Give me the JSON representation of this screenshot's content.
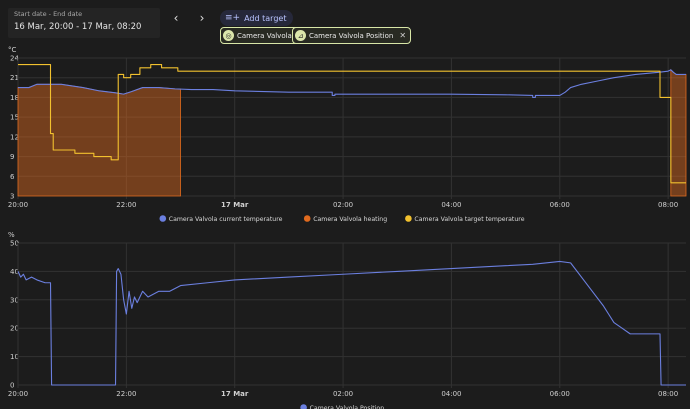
{
  "toolbar": {
    "date_label": "Start date - End date",
    "date_value": "16 Mar, 20:00 - 17 Mar, 08:20",
    "prev_icon": "chevron-left-icon",
    "next_icon": "chevron-right-icon",
    "add_target_label": "Add target",
    "add_target_icon": "playlist-plus-icon"
  },
  "chips": [
    {
      "label": "Camera Valvola",
      "icon": "thermostat-icon"
    },
    {
      "label": "Camera Valvola Position",
      "icon": "valve-icon"
    }
  ],
  "colors": {
    "current_temperature": "#6b7fdf",
    "heating": "#e06a1e",
    "target_temperature": "#f2c12e",
    "position": "#6b7fdf"
  },
  "chart_data": [
    {
      "type": "line",
      "ylabel": "°C",
      "ylim": [
        3,
        24
      ],
      "yticks": [
        "24",
        "21",
        "18",
        "15",
        "12",
        "9",
        "6",
        "3"
      ],
      "x_ticks": [
        {
          "label": "20:00",
          "t": 0
        },
        {
          "label": "22:00",
          "t": 2
        },
        {
          "label": "17 Mar",
          "t": 4,
          "bold": true
        },
        {
          "label": "02:00",
          "t": 6
        },
        {
          "label": "04:00",
          "t": 8
        },
        {
          "label": "06:00",
          "t": 10
        },
        {
          "label": "08:00",
          "t": 12
        }
      ],
      "xlim": [
        0,
        12.33
      ],
      "legend": [
        {
          "name": "Camera Valvola current temperature",
          "color": "#6b7fdf"
        },
        {
          "name": "Camera Valvola heating",
          "color": "#e06a1e"
        },
        {
          "name": "Camera Valvola target temperature",
          "color": "#f2c12e"
        }
      ],
      "series": [
        {
          "name": "Camera Valvola current temperature",
          "x": [
            0,
            0.2,
            0.35,
            0.5,
            0.8,
            1.2,
            1.5,
            1.8,
            1.95,
            2.1,
            2.3,
            2.6,
            2.9,
            3.2,
            3.6,
            4.0,
            5.0,
            5.8,
            5.8,
            5.85,
            5.85,
            7.0,
            8.0,
            9.0,
            9.5,
            9.5,
            9.55,
            9.55,
            10.0,
            10.1,
            10.2,
            10.4,
            10.7,
            11.0,
            11.4,
            11.8,
            12.0,
            12.05,
            12.1,
            12.15,
            12.33
          ],
          "y": [
            19.5,
            19.5,
            20,
            20,
            20,
            19.5,
            19,
            18.7,
            18.5,
            18.9,
            19.5,
            19.5,
            19.3,
            19.2,
            19.2,
            19,
            18.8,
            18.8,
            18.3,
            18.3,
            18.5,
            18.5,
            18.5,
            18.4,
            18.3,
            18,
            18,
            18.3,
            18.3,
            18.8,
            19.5,
            20,
            20.5,
            21,
            21.5,
            21.8,
            22,
            22.2,
            21.8,
            21.5,
            21.5
          ]
        },
        {
          "name": "Camera Valvola target temperature",
          "x": [
            0,
            0.6,
            0.6,
            0.65,
            0.65,
            1.05,
            1.05,
            1.4,
            1.4,
            1.72,
            1.72,
            1.85,
            1.85,
            1.95,
            1.95,
            2.08,
            2.08,
            2.25,
            2.25,
            2.45,
            2.45,
            2.65,
            2.65,
            2.95,
            2.95,
            11.85,
            11.85,
            12.05,
            12.05,
            12.33
          ],
          "y": [
            23,
            23,
            12.5,
            12.5,
            10,
            10,
            9.5,
            9.5,
            9,
            9,
            8.5,
            8.5,
            21.5,
            21.5,
            21,
            21,
            21.5,
            21.5,
            22.5,
            22.5,
            23,
            23,
            22.5,
            22.5,
            22,
            22,
            18,
            18,
            5,
            5
          ]
        }
      ],
      "heating": [
        {
          "start": 0,
          "end": 3.0
        },
        {
          "start": 12.05,
          "end": 12.33
        }
      ]
    },
    {
      "type": "line",
      "ylabel": "%",
      "ylim": [
        0,
        50
      ],
      "yticks": [
        "50",
        "40",
        "30",
        "20",
        "10",
        "0"
      ],
      "x_ticks": [
        {
          "label": "20:00",
          "t": 0
        },
        {
          "label": "22:00",
          "t": 2
        },
        {
          "label": "17 Mar",
          "t": 4,
          "bold": true
        },
        {
          "label": "02:00",
          "t": 6
        },
        {
          "label": "04:00",
          "t": 8
        },
        {
          "label": "06:00",
          "t": 10
        },
        {
          "label": "08:00",
          "t": 12
        }
      ],
      "xlim": [
        0,
        12.33
      ],
      "legend": [
        {
          "name": "Camera Valvola Position",
          "color": "#6b7fdf"
        }
      ],
      "series": [
        {
          "name": "Camera Valvola Position",
          "x": [
            0,
            0.05,
            0.1,
            0.15,
            0.25,
            0.35,
            0.5,
            0.6,
            0.62,
            1.8,
            1.82,
            1.85,
            1.9,
            1.95,
            2.0,
            2.05,
            2.1,
            2.15,
            2.2,
            2.3,
            2.4,
            2.6,
            2.8,
            3.0,
            3.5,
            4.0,
            5.0,
            6.0,
            7.0,
            8.0,
            9.0,
            9.5,
            10.0,
            10.2,
            10.4,
            10.6,
            10.8,
            10.9,
            11.0,
            11.15,
            11.3,
            11.5,
            11.8,
            11.85,
            11.87,
            12.33
          ],
          "y": [
            40,
            38,
            39,
            37,
            38,
            37,
            36,
            36,
            0,
            0,
            40,
            41,
            39,
            30,
            25,
            33,
            27,
            31,
            29,
            33,
            31,
            33,
            33,
            35,
            36,
            37,
            38,
            39,
            40,
            41,
            42,
            42.5,
            43.5,
            43,
            38,
            33,
            28,
            25,
            22,
            20,
            18,
            18,
            18,
            18,
            0,
            0
          ]
        }
      ]
    }
  ]
}
